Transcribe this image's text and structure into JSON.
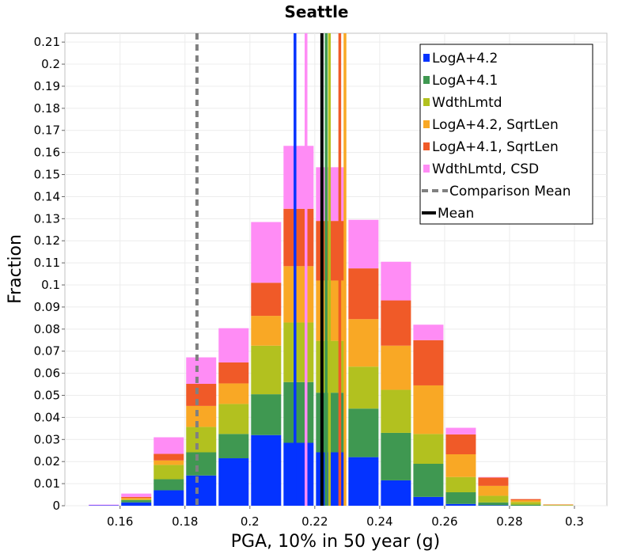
{
  "chart_data": {
    "type": "bar",
    "stacked": true,
    "title": "Seattle",
    "xlabel": "PGA, 10% in 50 year (g)",
    "ylabel": "Fraction",
    "xlim": [
      0.143,
      0.31
    ],
    "ylim": [
      0,
      0.214
    ],
    "bin_width": 0.01,
    "x_ticks": [
      "0.16",
      "0.18",
      "0.2",
      "0.22",
      "0.24",
      "0.26",
      "0.28",
      "0.3"
    ],
    "y_ticks": [
      "0",
      "0.01",
      "0.02",
      "0.03",
      "0.04",
      "0.05",
      "0.06",
      "0.07",
      "0.08",
      "0.09",
      "0.1",
      "0.11",
      "0.12",
      "0.13",
      "0.14",
      "0.15",
      "0.16",
      "0.17",
      "0.18",
      "0.19",
      "0.2",
      "0.21"
    ],
    "bins": [
      0.155,
      0.165,
      0.175,
      0.185,
      0.195,
      0.205,
      0.215,
      0.225,
      0.235,
      0.245,
      0.255,
      0.265,
      0.275,
      0.285,
      0.295,
      0.305
    ],
    "series": [
      {
        "name": "LogA+4.2",
        "color": "#0433ff",
        "values": [
          0.0002,
          0.0015,
          0.007,
          0.0137,
          0.0215,
          0.032,
          0.0285,
          0.0242,
          0.022,
          0.0115,
          0.004,
          0.0008,
          0.0002,
          0.0,
          0.0,
          0.0
        ]
      },
      {
        "name": "LogA+4.1",
        "color": "#3f9851",
        "values": [
          0.0,
          0.001,
          0.005,
          0.0105,
          0.011,
          0.0185,
          0.0275,
          0.027,
          0.022,
          0.0215,
          0.015,
          0.0053,
          0.0013,
          0.0005,
          0.0001,
          0.0
        ]
      },
      {
        "name": "WdthLmtd",
        "color": "#b2c11f",
        "values": [
          0.0,
          0.0003,
          0.0065,
          0.0115,
          0.0136,
          0.022,
          0.027,
          0.0235,
          0.019,
          0.0195,
          0.0135,
          0.0069,
          0.003,
          0.0012,
          0.0002,
          0.0
        ]
      },
      {
        "name": "LogA+4.2, SqrtLen",
        "color": "#f9a825",
        "values": [
          0.0,
          0.0007,
          0.002,
          0.0095,
          0.0093,
          0.0135,
          0.0255,
          0.0273,
          0.0215,
          0.02,
          0.022,
          0.0103,
          0.0045,
          0.0008,
          0.0002,
          0.0
        ]
      },
      {
        "name": "LogA+4.1, SqrtLen",
        "color": "#f05a28",
        "values": [
          0.0,
          0.0005,
          0.003,
          0.01,
          0.0095,
          0.015,
          0.026,
          0.027,
          0.023,
          0.0205,
          0.0205,
          0.009,
          0.0038,
          0.0005,
          0.0001,
          0.0
        ]
      },
      {
        "name": "WdthLmtd, CSD",
        "color": "#ff8cf5",
        "values": [
          0.0003,
          0.0015,
          0.0075,
          0.012,
          0.0155,
          0.0275,
          0.0285,
          0.0243,
          0.022,
          0.0175,
          0.007,
          0.003,
          0.0002,
          0.0,
          0.0,
          0.0
        ]
      }
    ],
    "vlines": [
      {
        "name": "LogA+4.2 mean",
        "x": 0.2139,
        "color": "#0433ff",
        "style": "solid"
      },
      {
        "name": "WdthLmtd, CSD mean",
        "x": 0.2173,
        "color": "#ff8cf5",
        "style": "solid"
      },
      {
        "name": "LogA+4.1 mean",
        "x": 0.2235,
        "color": "#3f9851",
        "style": "solid"
      },
      {
        "name": "WdthLmtd mean",
        "x": 0.2245,
        "color": "#b2c11f",
        "style": "solid"
      },
      {
        "name": "LogA+4.1, SqrtLen mean",
        "x": 0.2277,
        "color": "#f05a28",
        "style": "solid"
      },
      {
        "name": "LogA+4.2, SqrtLen mean",
        "x": 0.2293,
        "color": "#f9a825",
        "style": "solid"
      },
      {
        "name": "Mean",
        "x": 0.2222,
        "color": "#000000",
        "style": "solid"
      },
      {
        "name": "Comparison Mean",
        "x": 0.1837,
        "color": "#808080",
        "style": "dashed"
      }
    ],
    "legend": {
      "position": "top-right",
      "entries": [
        {
          "label": "LogA+4.2",
          "color": "#0433ff",
          "kind": "box"
        },
        {
          "label": "LogA+4.1",
          "color": "#3f9851",
          "kind": "box"
        },
        {
          "label": "WdthLmtd",
          "color": "#b2c11f",
          "kind": "box"
        },
        {
          "label": "LogA+4.2, SqrtLen",
          "color": "#f9a825",
          "kind": "box"
        },
        {
          "label": "LogA+4.1, SqrtLen",
          "color": "#f05a28",
          "kind": "box"
        },
        {
          "label": "WdthLmtd, CSD",
          "color": "#ff8cf5",
          "kind": "box"
        },
        {
          "label": "Comparison Mean",
          "color": "#808080",
          "kind": "dashed"
        },
        {
          "label": "Mean",
          "color": "#000000",
          "kind": "line"
        }
      ]
    },
    "grid": true
  }
}
